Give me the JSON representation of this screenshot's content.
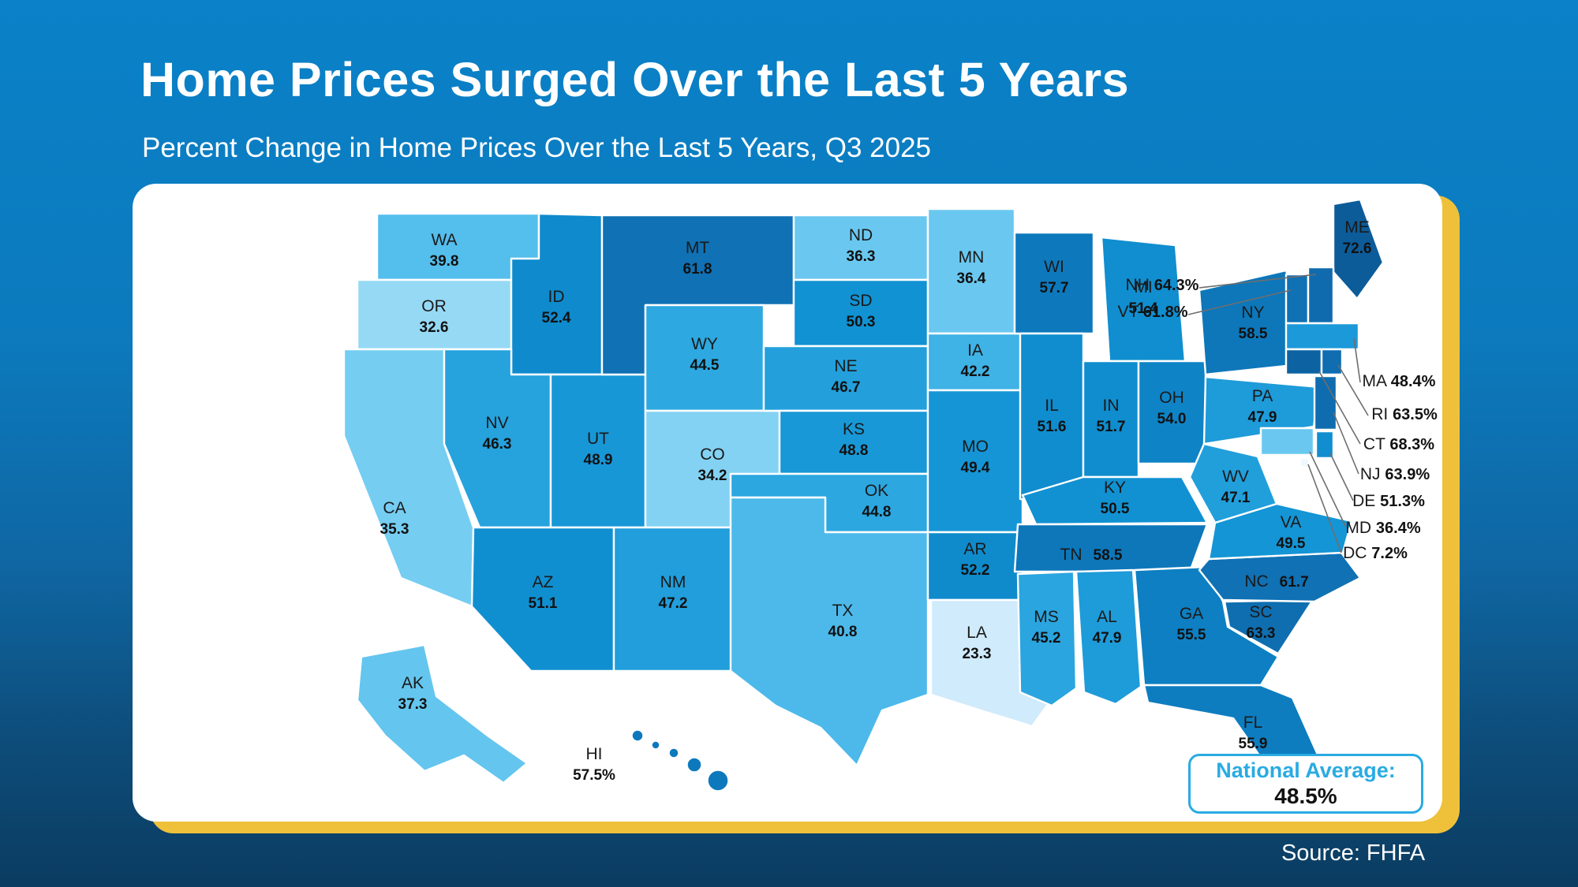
{
  "page": {
    "title": "Home Prices Surged Over the Last 5 Years",
    "subtitle": "Percent Change in Home Prices Over the Last 5 Years, Q3 2025",
    "source": "Source: FHFA"
  },
  "national_average": {
    "label": "National Average:",
    "value": "48.5%"
  },
  "colors": {
    "background_top": "#0a81c8",
    "background_bottom": "#0b3c61",
    "accent_yellow": "#efc13a",
    "callout_blue": "#29abe2",
    "state_border": "#ffffff",
    "label_text": "#1a1a1a",
    "leader_line": "#6e6e6e",
    "scale": [
      [
        7,
        "#eef8fe"
      ],
      [
        23,
        "#d2ecfb"
      ],
      [
        33,
        "#93d8f5"
      ],
      [
        36,
        "#6cc9f0"
      ],
      [
        40,
        "#53bdec"
      ],
      [
        44,
        "#2fa9e1"
      ],
      [
        46,
        "#27a3de"
      ],
      [
        48,
        "#1d9bd9"
      ],
      [
        50,
        "#1193d4"
      ],
      [
        52,
        "#0f8ccd"
      ],
      [
        54,
        "#0e84c6"
      ],
      [
        56,
        "#0d7dc0"
      ],
      [
        58,
        "#0d78bb"
      ],
      [
        60,
        "#0e74b7"
      ],
      [
        62,
        "#1071b4"
      ],
      [
        64,
        "#0f6cae"
      ],
      [
        66,
        "#0e67a8"
      ],
      [
        69,
        "#0d61a0"
      ],
      [
        73,
        "#0c5b99"
      ]
    ]
  },
  "chart_data": {
    "type": "choropleth-map",
    "title": "Home Prices Surged Over the Last 5 Years",
    "subtitle": "Percent Change in Home Prices Over the Last 5 Years, Q3 2025",
    "source": "Source: FHFA",
    "national_average_display": "48.5%",
    "states": [
      {
        "code": "WA",
        "value": 39.8,
        "display": "39.8"
      },
      {
        "code": "OR",
        "value": 32.6,
        "display": "32.6"
      },
      {
        "code": "CA",
        "value": 35.3,
        "display": "35.3"
      },
      {
        "code": "ID",
        "value": 52.4,
        "display": "52.4"
      },
      {
        "code": "NV",
        "value": 46.3,
        "display": "46.3"
      },
      {
        "code": "UT",
        "value": 48.9,
        "display": "48.9"
      },
      {
        "code": "AZ",
        "value": 51.1,
        "display": "51.1"
      },
      {
        "code": "MT",
        "value": 61.8,
        "display": "61.8"
      },
      {
        "code": "WY",
        "value": 44.5,
        "display": "44.5"
      },
      {
        "code": "CO",
        "value": 34.2,
        "display": "34.2"
      },
      {
        "code": "NM",
        "value": 47.2,
        "display": "47.2"
      },
      {
        "code": "ND",
        "value": 36.3,
        "display": "36.3"
      },
      {
        "code": "SD",
        "value": 50.3,
        "display": "50.3"
      },
      {
        "code": "NE",
        "value": 46.7,
        "display": "46.7"
      },
      {
        "code": "KS",
        "value": 48.8,
        "display": "48.8"
      },
      {
        "code": "OK",
        "value": 44.8,
        "display": "44.8"
      },
      {
        "code": "TX",
        "value": 40.8,
        "display": "40.8"
      },
      {
        "code": "MN",
        "value": 36.4,
        "display": "36.4"
      },
      {
        "code": "IA",
        "value": 42.2,
        "display": "42.2"
      },
      {
        "code": "MO",
        "value": 49.4,
        "display": "49.4"
      },
      {
        "code": "AR",
        "value": 52.2,
        "display": "52.2"
      },
      {
        "code": "LA",
        "value": 23.3,
        "display": "23.3"
      },
      {
        "code": "WI",
        "value": 57.7,
        "display": "57.7"
      },
      {
        "code": "IL",
        "value": 51.6,
        "display": "51.6"
      },
      {
        "code": "MI",
        "value": 51.4,
        "display": "51.4"
      },
      {
        "code": "IN",
        "value": 51.7,
        "display": "51.7"
      },
      {
        "code": "OH",
        "value": 54.0,
        "display": "54.0"
      },
      {
        "code": "KY",
        "value": 50.5,
        "display": "50.5"
      },
      {
        "code": "TN",
        "value": 58.5,
        "display": "58.5"
      },
      {
        "code": "MS",
        "value": 45.2,
        "display": "45.2"
      },
      {
        "code": "AL",
        "value": 47.9,
        "display": "47.9"
      },
      {
        "code": "GA",
        "value": 55.5,
        "display": "55.5"
      },
      {
        "code": "FL",
        "value": 55.9,
        "display": "55.9"
      },
      {
        "code": "SC",
        "value": 63.3,
        "display": "63.3"
      },
      {
        "code": "NC",
        "value": 61.7,
        "display": "61.7"
      },
      {
        "code": "VA",
        "value": 49.5,
        "display": "49.5"
      },
      {
        "code": "WV",
        "value": 47.1,
        "display": "47.1"
      },
      {
        "code": "PA",
        "value": 47.9,
        "display": "47.9"
      },
      {
        "code": "NY",
        "value": 58.5,
        "display": "58.5"
      },
      {
        "code": "ME",
        "value": 72.6,
        "display": "72.6"
      },
      {
        "code": "VT",
        "value": 61.8,
        "display": "61.8%"
      },
      {
        "code": "NH",
        "value": 64.3,
        "display": "64.3%"
      },
      {
        "code": "MA",
        "value": 48.4,
        "display": "48.4%"
      },
      {
        "code": "CT",
        "value": 68.3,
        "display": "68.3%"
      },
      {
        "code": "RI",
        "value": 63.5,
        "display": "63.5%"
      },
      {
        "code": "NJ",
        "value": 63.9,
        "display": "63.9%"
      },
      {
        "code": "DE",
        "value": 51.3,
        "display": "51.3%"
      },
      {
        "code": "MD",
        "value": 36.4,
        "display": "36.4%"
      },
      {
        "code": "DC",
        "value": 7.2,
        "display": "7.2%"
      },
      {
        "code": "AK",
        "value": 37.3,
        "display": "37.3"
      },
      {
        "code": "HI",
        "value": 57.5,
        "display": "57.5%"
      }
    ]
  }
}
